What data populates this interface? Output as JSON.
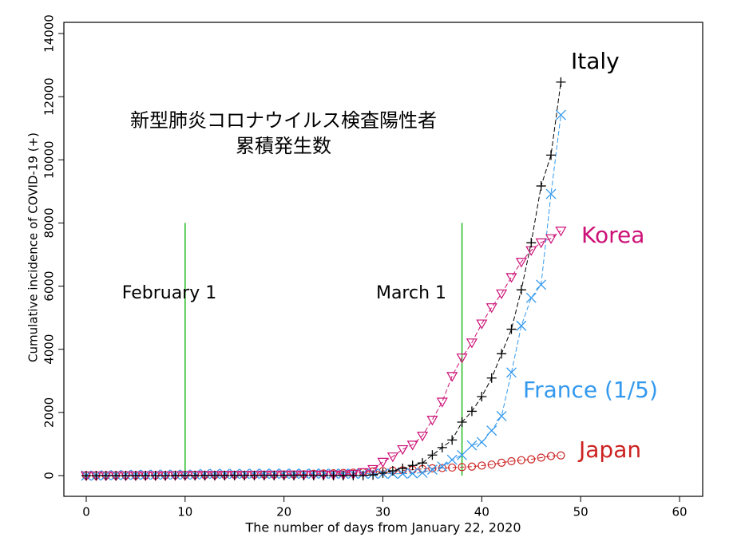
{
  "chart_data": {
    "type": "line",
    "title": [
      "新型肺炎コロナウイルス検査陽性者",
      "累積発生数"
    ],
    "x_label": "The number of days from January 22, 2020",
    "y_label": "Cumulative incidence of COVID-19 (+)",
    "xlim": [
      -2.26,
      62.34
    ],
    "ylim": [
      -657,
      14354
    ],
    "xticks": [
      0,
      10,
      20,
      30,
      40,
      50,
      60
    ],
    "yticks": [
      0,
      2000,
      4000,
      6000,
      8000,
      10000,
      12000,
      14000
    ],
    "vlines": [
      {
        "x": 10,
        "ymax": 8000,
        "label": "February 1",
        "color": "#22bb22"
      },
      {
        "x": 38,
        "ymax": 8000,
        "label": "March 1",
        "color": "#22bb22"
      }
    ],
    "x": [
      0,
      1,
      2,
      3,
      4,
      5,
      6,
      7,
      8,
      9,
      10,
      11,
      12,
      13,
      14,
      15,
      16,
      17,
      18,
      19,
      20,
      21,
      22,
      23,
      24,
      25,
      26,
      27,
      28,
      29,
      30,
      31,
      32,
      33,
      34,
      35,
      36,
      37,
      38,
      39,
      40,
      41,
      42,
      43,
      44,
      45,
      46,
      47,
      48
    ],
    "series": [
      {
        "name": "Japan",
        "color": "#cc2222",
        "marker": "circle",
        "values": [
          1,
          1,
          2,
          2,
          3,
          4,
          6,
          7,
          11,
          14,
          17,
          20,
          20,
          20,
          25,
          26,
          26,
          26,
          28,
          29,
          33,
          33,
          41,
          59,
          66,
          73,
          84,
          93,
          105,
          132,
          144,
          156,
          164,
          186,
          210,
          230,
          239,
          254,
          268,
          284,
          317,
          349,
          408,
          455,
          488,
          514,
          568,
          619,
          639
        ]
      },
      {
        "name": "France (1/5)",
        "color": "#3399ee",
        "marker": "x",
        "values": [
          0,
          0,
          15,
          15,
          20,
          25,
          25,
          30,
          30,
          30,
          30,
          30,
          55,
          55,
          55,
          55,
          55,
          60,
          60,
          60,
          60,
          60,
          60,
          60,
          60,
          60,
          60,
          60,
          60,
          60,
          60,
          60,
          60,
          70,
          90,
          190,
          285,
          500,
          650,
          955,
          1060,
          1425,
          1885,
          3265,
          4745,
          5630,
          6045,
          8920,
          11420
        ]
      },
      {
        "name": "Korea",
        "color": "#cc1177",
        "marker": "triangle-down",
        "values": [
          1,
          1,
          2,
          2,
          3,
          4,
          4,
          4,
          4,
          11,
          12,
          15,
          15,
          16,
          19,
          23,
          24,
          24,
          25,
          27,
          28,
          28,
          28,
          28,
          28,
          29,
          31,
          51,
          104,
          204,
          433,
          602,
          833,
          977,
          1261,
          1766,
          2337,
          3150,
          3736,
          4212,
          4812,
          5328,
          5766,
          6284,
          6767,
          7134,
          7382,
          7513,
          7755
        ]
      },
      {
        "name": "Italy",
        "color": "#000000",
        "marker": "plus",
        "values": [
          0,
          0,
          0,
          0,
          0,
          0,
          0,
          0,
          0,
          2,
          2,
          2,
          2,
          2,
          2,
          2,
          3,
          3,
          3,
          3,
          3,
          3,
          3,
          3,
          3,
          3,
          3,
          3,
          3,
          20,
          79,
          152,
          229,
          322,
          400,
          650,
          888,
          1128,
          1694,
          2036,
          2502,
          3089,
          3858,
          4636,
          5883,
          7375,
          9172,
          10149,
          12462
        ]
      }
    ]
  }
}
